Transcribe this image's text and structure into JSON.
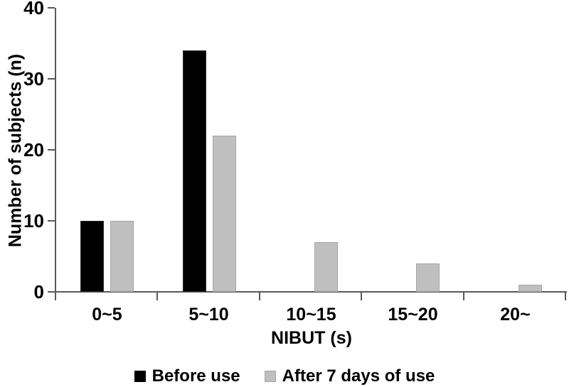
{
  "figure": {
    "background": "#ffffff"
  },
  "chart_data": {
    "type": "bar",
    "categories": [
      "0~5",
      "5~10",
      "10~15",
      "15~20",
      "20~"
    ],
    "series": [
      {
        "name": "Before use",
        "color": "#000000",
        "values": [
          10,
          34,
          0,
          0,
          0
        ]
      },
      {
        "name": "After 7 days of use",
        "color": "#bfbfbf",
        "values": [
          10,
          22,
          7,
          4,
          1
        ]
      }
    ],
    "title": "",
    "xlabel": "NIBUT (s)",
    "ylabel": "Number of subjects (n)",
    "ylim": [
      0,
      40
    ],
    "yticks": [
      0,
      10,
      20,
      30,
      40
    ],
    "grid": false,
    "legend_position": "bottom",
    "axis_color": "#595959"
  }
}
